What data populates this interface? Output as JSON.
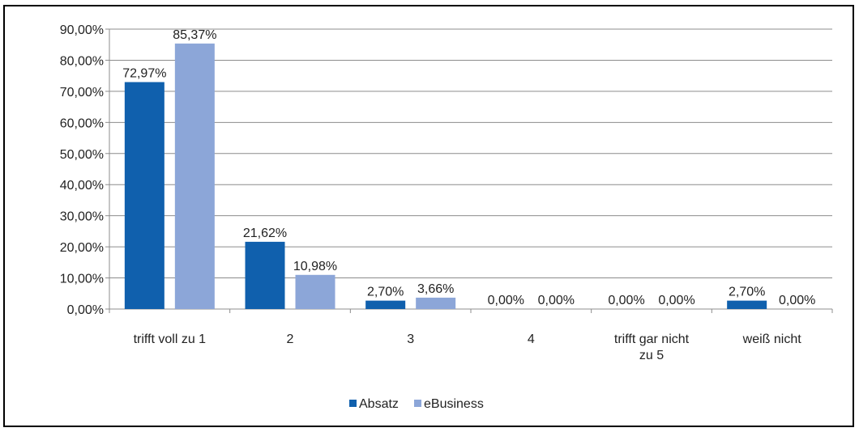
{
  "chart_data": {
    "type": "bar",
    "title": "",
    "xlabel": "",
    "ylabel": "",
    "categories": [
      [
        "trifft voll zu 1"
      ],
      [
        "2"
      ],
      [
        "3"
      ],
      [
        "4"
      ],
      [
        "trifft gar nicht",
        "zu 5"
      ],
      [
        "weiß nicht"
      ]
    ],
    "series": [
      {
        "name": "Absatz",
        "color": "#1060ad",
        "values": [
          72.97,
          21.62,
          2.7,
          0.0,
          0.0,
          2.7
        ],
        "labels": [
          "72,97%",
          "21,62%",
          "2,70%",
          "0,00%",
          "0,00%",
          "2,70%"
        ]
      },
      {
        "name": "eBusiness",
        "color": "#8ca6d8",
        "values": [
          85.37,
          10.98,
          3.66,
          0.0,
          0.0,
          0.0
        ],
        "labels": [
          "85,37%",
          "10,98%",
          "3,66%",
          "0,00%",
          "0,00%",
          "0,00%"
        ]
      }
    ],
    "ylim": [
      0,
      90
    ],
    "yticks": [
      0,
      10,
      20,
      30,
      40,
      50,
      60,
      70,
      80,
      90
    ],
    "ytick_labels": [
      "0,00%",
      "10,00%",
      "20,00%",
      "30,00%",
      "40,00%",
      "50,00%",
      "60,00%",
      "70,00%",
      "80,00%",
      "90,00%"
    ],
    "grid": true,
    "legend_position": "bottom"
  }
}
